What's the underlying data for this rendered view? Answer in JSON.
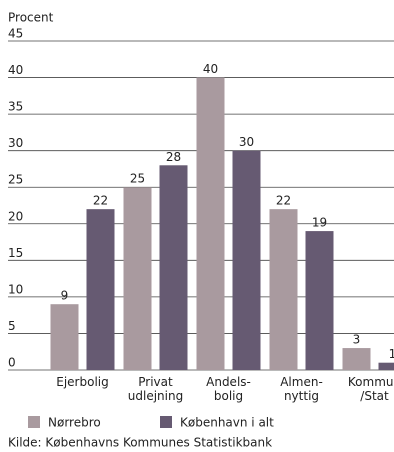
{
  "chart_data": {
    "type": "bar",
    "y_label": "Procent",
    "categories": [
      [
        "Ejerbolig"
      ],
      [
        "Privat",
        "udlejning"
      ],
      [
        "Andels-",
        "bolig"
      ],
      [
        "Almen-",
        "nyttig"
      ],
      [
        "Kommun",
        "/Stat"
      ]
    ],
    "series": [
      {
        "name": "Nørrebro",
        "color": "#a99a9f",
        "values": [
          9,
          25,
          40,
          22,
          3
        ]
      },
      {
        "name": "København i alt",
        "color": "#665a72",
        "values": [
          22,
          28,
          30,
          19,
          1
        ]
      }
    ],
    "ylim": [
      0,
      45
    ],
    "yticks": [
      0,
      5,
      10,
      15,
      20,
      25,
      30,
      35,
      40,
      45
    ],
    "grid": true,
    "source": "Kilde: Københavns Kommunes Statistikbank"
  }
}
